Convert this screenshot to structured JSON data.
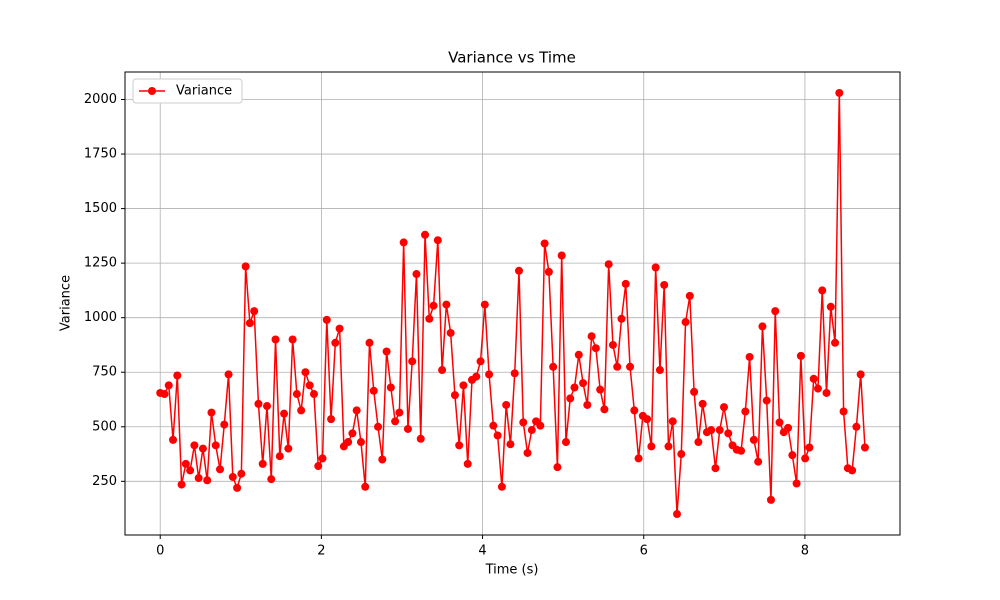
{
  "chart_data": {
    "type": "line",
    "title": "Variance vs Time",
    "x_label": "Time (s)",
    "y_label": "Variance",
    "x": [
      0,
      0.053,
      0.106,
      0.159,
      0.212,
      0.265,
      0.318,
      0.371,
      0.424,
      0.477,
      0.53,
      0.583,
      0.636,
      0.689,
      0.742,
      0.795,
      0.848,
      0.901,
      0.954,
      1.007,
      1.06,
      1.113,
      1.166,
      1.219,
      1.272,
      1.325,
      1.378,
      1.431,
      1.484,
      1.537,
      1.59,
      1.643,
      1.696,
      1.749,
      1.802,
      1.855,
      1.908,
      1.961,
      2.014,
      2.067,
      2.12,
      2.173,
      2.226,
      2.279,
      2.332,
      2.385,
      2.438,
      2.491,
      2.544,
      2.597,
      2.65,
      2.703,
      2.756,
      2.809,
      2.862,
      2.915,
      2.968,
      3.021,
      3.074,
      3.127,
      3.18,
      3.233,
      3.286,
      3.339,
      3.392,
      3.445,
      3.498,
      3.551,
      3.604,
      3.657,
      3.71,
      3.763,
      3.816,
      3.869,
      3.922,
      3.975,
      4.028,
      4.081,
      4.134,
      4.187,
      4.24,
      4.293,
      4.346,
      4.399,
      4.452,
      4.505,
      4.558,
      4.611,
      4.664,
      4.717,
      4.77,
      4.823,
      4.876,
      4.929,
      4.982,
      5.035,
      5.088,
      5.141,
      5.194,
      5.247,
      5.3,
      5.353,
      5.406,
      5.459,
      5.512,
      5.565,
      5.618,
      5.671,
      5.724,
      5.777,
      5.83,
      5.883,
      5.936,
      5.989,
      6.042,
      6.095,
      6.148,
      6.201,
      6.254,
      6.307,
      6.36,
      6.413,
      6.466,
      6.519,
      6.572,
      6.625,
      6.678,
      6.731,
      6.784,
      6.837,
      6.89,
      6.943,
      6.996,
      7.049,
      7.102,
      7.155,
      7.208,
      7.261,
      7.314,
      7.367,
      7.42,
      7.473,
      7.526,
      7.579,
      7.632,
      7.685,
      7.738,
      7.791,
      7.844,
      7.897,
      7.95,
      8.003,
      8.056,
      8.109,
      8.162,
      8.215,
      8.268,
      8.321,
      8.374,
      8.427,
      8.48,
      8.533,
      8.586,
      8.639,
      8.692,
      8.745
    ],
    "series": [
      {
        "name": "Variance",
        "color": "#ff0000",
        "values": [
          655,
          650,
          690,
          440,
          735,
          235,
          330,
          300,
          415,
          265,
          400,
          255,
          565,
          415,
          305,
          510,
          740,
          270,
          220,
          285,
          1235,
          975,
          1030,
          605,
          330,
          595,
          260,
          900,
          365,
          560,
          400,
          900,
          650,
          575,
          750,
          690,
          650,
          320,
          355,
          990,
          535,
          885,
          950,
          410,
          430,
          470,
          575,
          430,
          225,
          885,
          665,
          500,
          350,
          845,
          680,
          525,
          565,
          1345,
          490,
          800,
          1200,
          445,
          1380,
          995,
          1055,
          1355,
          760,
          1060,
          930,
          645,
          415,
          690,
          330,
          715,
          730,
          800,
          1060,
          740,
          505,
          460,
          225,
          600,
          420,
          745,
          1215,
          520,
          380,
          485,
          525,
          505,
          1340,
          1210,
          775,
          315,
          1285,
          430,
          630,
          680,
          830,
          700,
          600,
          915,
          860,
          670,
          580,
          1245,
          875,
          775,
          995,
          1155,
          775,
          575,
          355,
          550,
          535,
          410,
          1230,
          760,
          1150,
          410,
          525,
          100,
          375,
          980,
          1100,
          660,
          430,
          605,
          475,
          485,
          310,
          485,
          590,
          470,
          415,
          395,
          390,
          570,
          820,
          440,
          340,
          960,
          620,
          165,
          1030,
          520,
          475,
          495,
          370,
          240,
          825,
          355,
          405,
          720,
          675,
          1125,
          655,
          1050,
          885,
          2030,
          570,
          310,
          300,
          500,
          740,
          405
        ]
      }
    ],
    "xlim": [
      -0.437,
      9.18
    ],
    "ylim": [
      4,
      2126
    ],
    "xticks": [
      0,
      2,
      4,
      6,
      8
    ],
    "yticks": [
      250,
      500,
      750,
      1000,
      1250,
      1500,
      1750,
      2000
    ],
    "grid": true,
    "legend": "upper left"
  }
}
